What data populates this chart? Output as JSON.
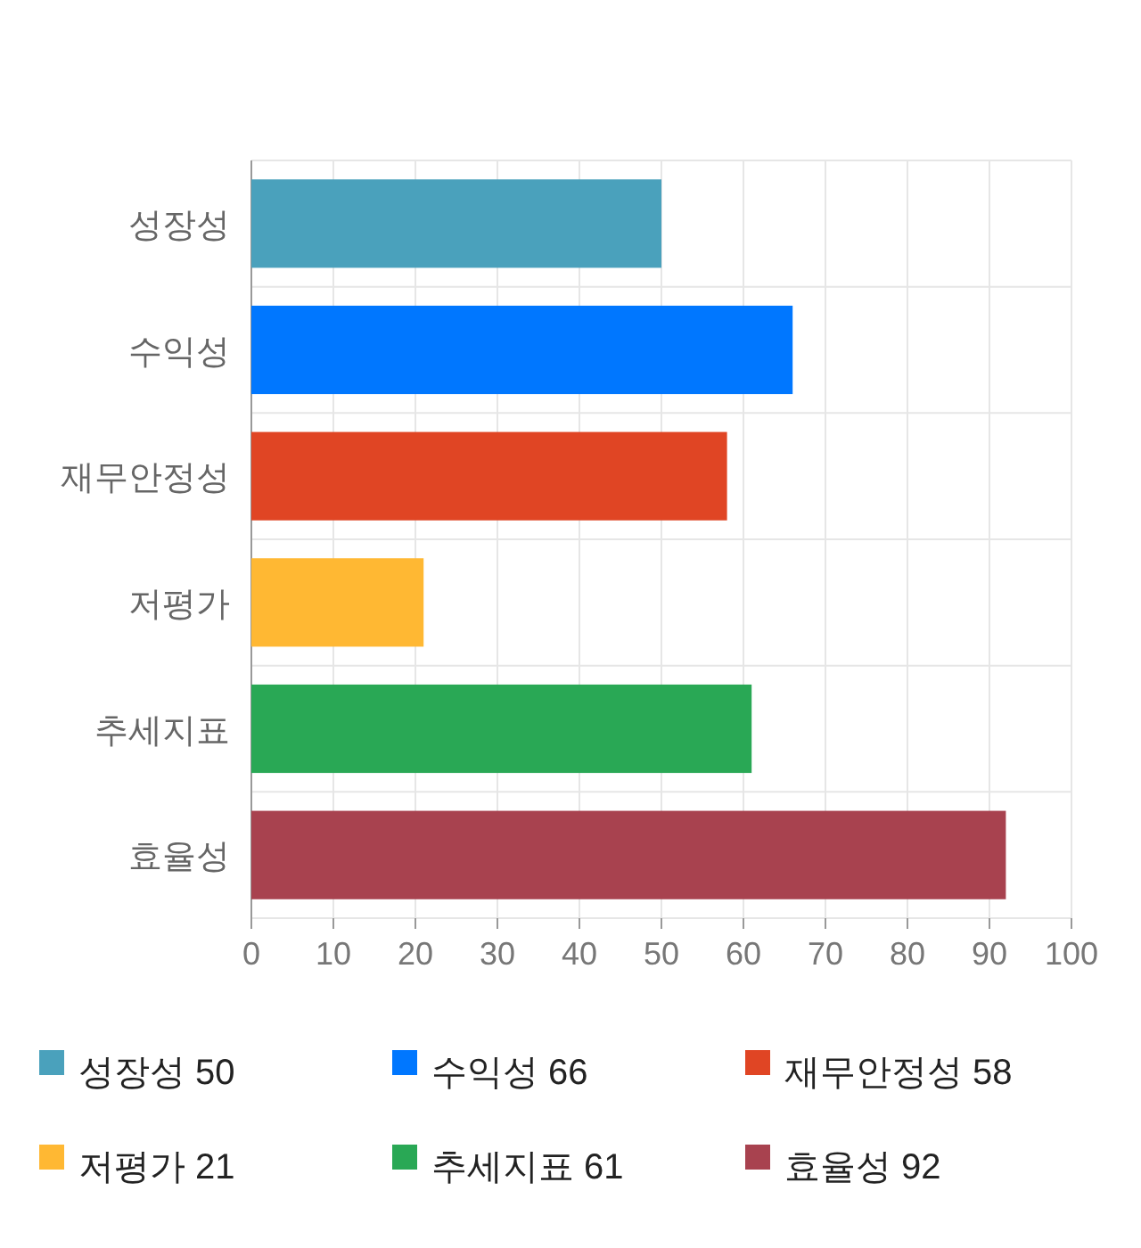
{
  "chart_data": {
    "type": "bar",
    "orientation": "horizontal",
    "categories": [
      "성장성",
      "수익성",
      "재무안정성",
      "저평가",
      "추세지표",
      "효율성"
    ],
    "series": [
      {
        "name": "성장성 50",
        "color": "#4aa1bc",
        "values": [
          50,
          null,
          null,
          null,
          null,
          null
        ]
      },
      {
        "name": "수익성 66",
        "color": "#0077ff",
        "values": [
          null,
          66,
          null,
          null,
          null,
          null
        ]
      },
      {
        "name": "재무안정성 58",
        "color": "#e04524",
        "values": [
          null,
          null,
          58,
          null,
          null,
          null
        ]
      },
      {
        "name": "저평가 21",
        "color": "#ffb833",
        "values": [
          null,
          null,
          null,
          21,
          null,
          null
        ]
      },
      {
        "name": "추세지표 61",
        "color": "#29a855",
        "values": [
          null,
          null,
          null,
          null,
          61,
          null
        ]
      },
      {
        "name": "효율성 92",
        "color": "#a8424f",
        "values": [
          null,
          null,
          null,
          null,
          null,
          92
        ]
      }
    ],
    "xlim": [
      0,
      100
    ],
    "xticks": [
      0,
      10,
      20,
      30,
      40,
      50,
      60,
      70,
      80,
      90,
      100
    ],
    "grid": true,
    "legend": "bottom"
  }
}
